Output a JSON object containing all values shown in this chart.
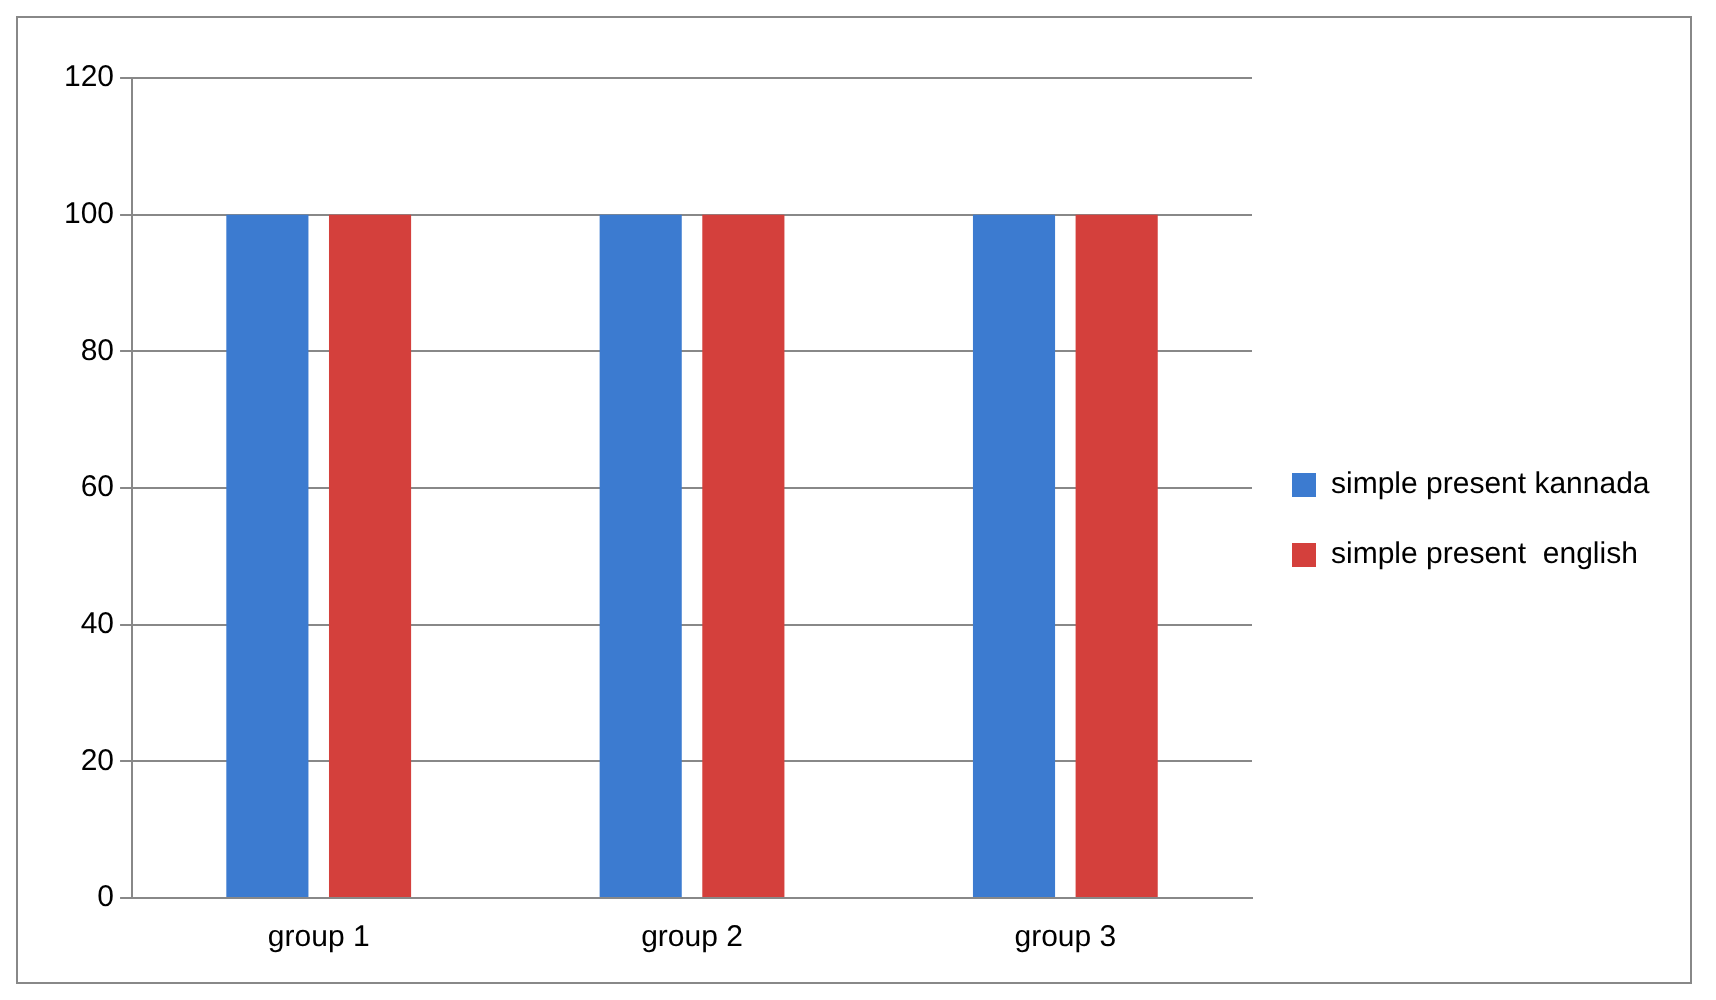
{
  "chart_data": {
    "type": "bar",
    "categories": [
      "group 1",
      "group 2",
      "group 3"
    ],
    "series": [
      {
        "name": "simple present kannada",
        "color": "#3c7bd0",
        "values": [
          100,
          100,
          100
        ]
      },
      {
        "name": "simple present  english",
        "color": "#d4403c",
        "values": [
          100,
          100,
          100
        ]
      }
    ],
    "ylim": [
      0,
      120
    ],
    "yticks": [
      0,
      20,
      40,
      60,
      80,
      100,
      120
    ],
    "grid": "y",
    "legend": "right"
  }
}
